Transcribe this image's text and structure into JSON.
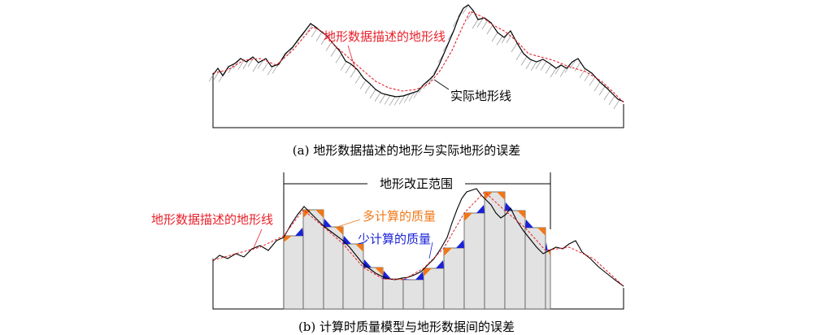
{
  "panel_a": {
    "label_described": "地形数据描述的地形线",
    "label_actual": "实际地形线",
    "caption": "(a) 地形数据描述的地形与实际地形的误差"
  },
  "panel_b": {
    "range_label": "地形改正范围",
    "label_described": "地形数据描述的地形线",
    "label_over": "多计算的质量",
    "label_under": "少计算的质量",
    "caption": "(b) 计算时质量模型与地形数据间的误差"
  },
  "colors": {
    "described_line": "#e8202a",
    "actual_line": "#000000",
    "over_mass": "#f07818",
    "under_mass": "#1a22d8",
    "prism_fill": "#e2e2e2"
  }
}
